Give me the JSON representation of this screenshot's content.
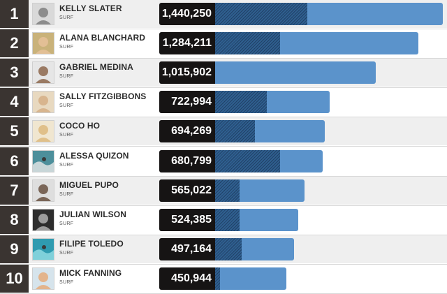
{
  "chart_data": {
    "type": "bar",
    "orientation": "horizontal",
    "grid": false,
    "xlim": [
      0,
      1440250
    ],
    "rows": [
      {
        "rank": "1",
        "name": "KELLY SLATER",
        "sport": "SURF",
        "value": 1440250,
        "value_label": "1,440,250",
        "hatched_value": 585000
      },
      {
        "rank": "2",
        "name": "ALANA BLANCHARD",
        "sport": "SURF",
        "value": 1284211,
        "value_label": "1,284,211",
        "hatched_value": 410000
      },
      {
        "rank": "3",
        "name": "GABRIEL MEDINA",
        "sport": "SURF",
        "value": 1015902,
        "value_label": "1,015,902",
        "hatched_value": 0
      },
      {
        "rank": "4",
        "name": "SALLY FITZGIBBONS",
        "sport": "SURF",
        "value": 722994,
        "value_label": "722,994",
        "hatched_value": 325000
      },
      {
        "rank": "5",
        "name": "COCO HO",
        "sport": "SURF",
        "value": 694269,
        "value_label": "694,269",
        "hatched_value": 250000
      },
      {
        "rank": "6",
        "name": "ALESSA QUIZON",
        "sport": "SURF",
        "value": 680799,
        "value_label": "680,799",
        "hatched_value": 410000
      },
      {
        "rank": "7",
        "name": "MIGUEL PUPO",
        "sport": "SURF",
        "value": 565022,
        "value_label": "565,022",
        "hatched_value": 155000
      },
      {
        "rank": "8",
        "name": "JULIAN WILSON",
        "sport": "SURF",
        "value": 524385,
        "value_label": "524,385",
        "hatched_value": 155000
      },
      {
        "rank": "9",
        "name": "FILIPE TOLEDO",
        "sport": "SURF",
        "value": 497164,
        "value_label": "497,164",
        "hatched_value": 170000
      },
      {
        "rank": "10",
        "name": "MICK FANNING",
        "sport": "SURF",
        "value": 450944,
        "value_label": "450,944",
        "hatched_value": 30000
      }
    ],
    "colors": {
      "bar": "#5b93cb",
      "bar_hatched": "#2f5f8f",
      "rank_bg": "#3a3431",
      "value_bg": "#161414"
    }
  },
  "avatars": [
    {
      "icon": "person-photo-grey",
      "bg": "#d9d9d9",
      "skin": "#8c8c8c"
    },
    {
      "icon": "person-photo-blonde",
      "bg": "#c9b27a",
      "skin": "#e2bf95"
    },
    {
      "icon": "person-photo-dark",
      "bg": "#e6e6e6",
      "skin": "#9a7a63"
    },
    {
      "icon": "person-photo-blonde",
      "bg": "#e8d9c0",
      "skin": "#d8b58e"
    },
    {
      "icon": "person-photo-blonde",
      "bg": "#f0e6d0",
      "skin": "#e0c08a"
    },
    {
      "icon": "surf-action-photo",
      "bg": "#4d8f9b",
      "skin": "#c8d6d8"
    },
    {
      "icon": "person-photo-dark",
      "bg": "#dedede",
      "skin": "#7a6658"
    },
    {
      "icon": "person-photo-bw",
      "bg": "#2d2d2d",
      "skin": "#9c9c9c"
    },
    {
      "icon": "surf-action-photo",
      "bg": "#2f9bb0",
      "skin": "#7fd0da"
    },
    {
      "icon": "person-photo-blonde",
      "bg": "#d6e4ec",
      "skin": "#e3b48c"
    }
  ]
}
